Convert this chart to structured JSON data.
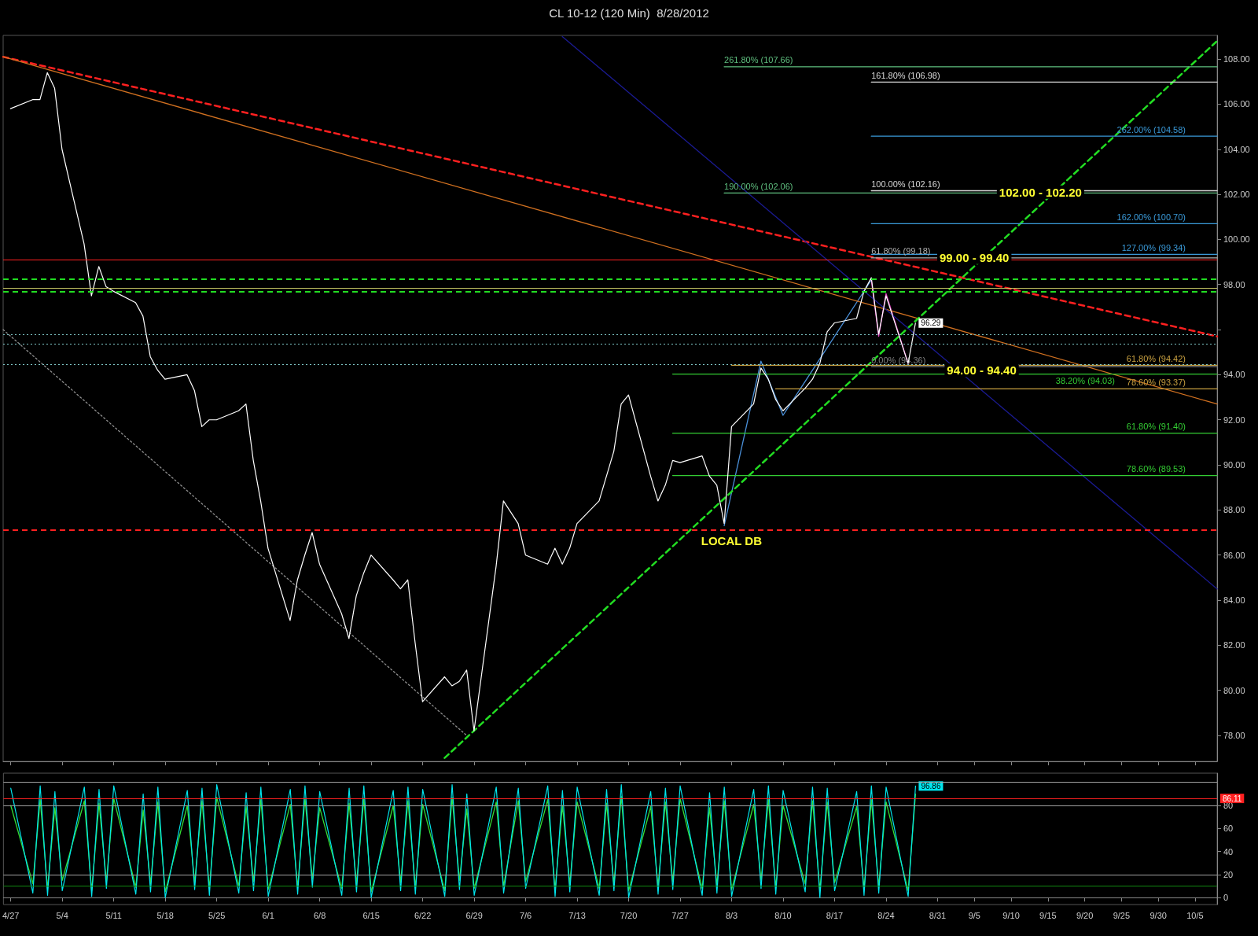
{
  "chart_data": [
    {
      "type": "line",
      "title": "CL 10-12 (120 Min)  8/28/2012",
      "x": [
        "--04-27",
        "--04-30",
        "--05-01",
        "--05-02",
        "--05-03",
        "--05-04",
        "--05-07",
        "--05-08",
        "--05-09",
        "--05-10",
        "--05-11",
        "--05-14",
        "--05-15",
        "--05-16",
        "--05-17",
        "--05-18",
        "--05-21",
        "--05-22",
        "--05-23",
        "--05-24",
        "--05-25",
        "--05-28",
        "--05-29",
        "--05-30",
        "--05-31",
        "--06-01",
        "--06-04",
        "--06-05",
        "--06-06",
        "--06-07",
        "--06-08",
        "--06-11",
        "--06-12",
        "--06-13",
        "--06-14",
        "--06-15",
        "--06-18",
        "--06-19",
        "--06-20",
        "--06-21",
        "--06-22",
        "--06-25",
        "--06-26",
        "--06-27",
        "--06-28",
        "--06-29",
        "--07-02",
        "--07-03",
        "--07-05",
        "--07-06",
        "--07-09",
        "--07-10",
        "--07-11",
        "--07-12",
        "--07-13",
        "--07-16",
        "--07-17",
        "--07-18",
        "--07-19",
        "--07-20",
        "--07-23",
        "--07-24",
        "--07-25",
        "--07-26",
        "--07-27",
        "--07-30",
        "--07-31",
        "--08-01",
        "--08-02",
        "--08-03",
        "--08-06",
        "--08-07",
        "--08-08",
        "--08-09",
        "--08-10",
        "--08-13",
        "--08-14",
        "--08-15",
        "--08-16",
        "--08-17",
        "--08-20",
        "--08-21",
        "--08-22",
        "--08-23",
        "--08-24",
        "--08-27",
        "--08-28"
      ],
      "series": [
        {
          "color": "#ffffff",
          "value_labels": [
            null,
            null,
            null,
            null,
            null,
            null,
            null,
            null,
            null,
            null,
            null,
            null,
            null,
            null,
            null,
            null,
            null,
            null,
            null,
            null,
            null,
            null,
            null,
            null,
            null,
            null,
            null,
            null,
            null,
            null,
            null,
            null,
            null,
            null,
            null,
            null,
            null,
            null,
            null,
            null,
            null,
            null,
            null,
            null,
            null,
            null,
            null,
            null,
            null,
            null,
            null,
            null,
            null,
            null,
            null,
            null,
            null,
            null,
            null,
            null,
            null,
            null,
            null,
            null,
            null,
            null,
            null,
            null,
            null,
            null,
            null,
            null,
            null,
            null,
            null,
            null,
            null,
            null,
            null,
            null,
            null,
            null,
            null,
            null,
            null,
            null,
            "96.29"
          ],
          "values": [
            105.8,
            106.2,
            106.2,
            107.4,
            106.7,
            104.0,
            99.8,
            97.5,
            98.8,
            97.9,
            97.7,
            97.2,
            96.6,
            94.8,
            94.2,
            93.8,
            94.0,
            93.3,
            91.7,
            92.0,
            92.0,
            92.4,
            92.7,
            90.2,
            88.4,
            86.3,
            83.1,
            84.9,
            86.0,
            87.0,
            85.6,
            83.4,
            82.3,
            84.2,
            85.2,
            86.0,
            84.9,
            84.5,
            84.9,
            82.1,
            79.5,
            80.6,
            80.2,
            80.4,
            80.9,
            78.2,
            85.5,
            88.4,
            87.4,
            86.0,
            85.6,
            86.3,
            85.6,
            86.3,
            87.4,
            88.4,
            89.5,
            90.6,
            92.7,
            93.1,
            89.5,
            88.4,
            89.1,
            90.2,
            90.1,
            90.4,
            89.5,
            89.1,
            87.4,
            91.7,
            92.7,
            94.3,
            93.8,
            92.9,
            92.4,
            93.4,
            93.8,
            94.5,
            95.9,
            96.3,
            96.5,
            97.7,
            98.3,
            95.8,
            97.5,
            94.5,
            96.29
          ]
        },
        {
          "color": "#4a90d9",
          "x": [
            "--08-02",
            "--08-07",
            "--08-10",
            "--08-22"
          ],
          "values": [
            87.3,
            94.6,
            92.2,
            98.2
          ]
        },
        {
          "color": "#e040c0",
          "x": [
            "--08-22",
            "--08-23",
            "--08-24",
            "--08-27"
          ],
          "values": [
            98.2,
            95.7,
            97.6,
            94.5
          ]
        },
        {
          "color": "#ff2020",
          "line_style": "dashed",
          "x": [
            "--04-26",
            "--10-08"
          ],
          "values": [
            108.1,
            95.7
          ]
        },
        {
          "color": "#d07020",
          "x": [
            "--04-26",
            "--10-08"
          ],
          "values": [
            108.1,
            92.7
          ]
        },
        {
          "color": "#22dd22",
          "line_style": "dashed",
          "x": [
            "--06-25",
            "--10-08"
          ],
          "values": [
            77.0,
            108.8
          ]
        },
        {
          "color": "#1a1a90",
          "x": [
            "--07-11",
            "--10-08"
          ],
          "values": [
            109.0,
            84.5
          ]
        },
        {
          "color": "#909090",
          "line_style": "dotted",
          "x": [
            "--04-26",
            "--06-28"
          ],
          "values": [
            96.0,
            78.0
          ]
        },
        {
          "name": "261.80% (107.66)",
          "color": "#5fbf7f",
          "x": [
            "--08-02",
            "--10-08"
          ],
          "values": [
            107.66,
            107.66
          ]
        },
        {
          "name": "190.00% (102.06)",
          "color": "#5fbf7f",
          "x": [
            "--08-02",
            "--10-08"
          ],
          "values": [
            102.06,
            102.06
          ]
        },
        {
          "name": "161.80% (106.98)",
          "color": "#d8d8d8",
          "x": [
            "--08-22",
            "--10-08"
          ],
          "values": [
            106.98,
            106.98
          ]
        },
        {
          "name": "100.00% (102.16)",
          "color": "#d8d8d8",
          "x": [
            "--08-22",
            "--10-08"
          ],
          "values": [
            102.16,
            102.16
          ]
        },
        {
          "name": "61.80% (99.18)",
          "color": "#b0b0b0",
          "x": [
            "--08-22",
            "--10-08"
          ],
          "values": [
            99.18,
            99.18
          ]
        },
        {
          "name": "0.00% (94.36)",
          "color": "#808080",
          "x": [
            "--08-22",
            "--10-08"
          ],
          "values": [
            94.36,
            94.36
          ]
        },
        {
          "name": "262.00% (104.58)",
          "color": "#3a9ad9",
          "x": [
            "--08-22",
            "--10-08"
          ],
          "values": [
            104.58,
            104.58
          ]
        },
        {
          "name": "162.00% (100.70)",
          "color": "#3a9ad9",
          "x": [
            "--08-22",
            "--10-08"
          ],
          "values": [
            100.7,
            100.7
          ]
        },
        {
          "name": "127.00% (99.34)",
          "color": "#3a9ad9",
          "x": [
            "--08-22",
            "--10-08"
          ],
          "values": [
            99.34,
            99.34
          ]
        },
        {
          "name": "61.80% (94.42)",
          "color": "#c8a040",
          "x": [
            "--08-03",
            "--10-08"
          ],
          "values": [
            94.42,
            94.42
          ]
        },
        {
          "name": "38.20% (94.03)",
          "color": "#33cc33",
          "x": [
            "--07-26",
            "--10-08"
          ],
          "values": [
            94.03,
            94.03
          ]
        },
        {
          "name": "78.60% (93.37)",
          "color": "#c8a040",
          "x": [
            "--08-09",
            "--10-08"
          ],
          "values": [
            93.37,
            93.37
          ]
        },
        {
          "name": "61.80% (91.40)",
          "color": "#33cc33",
          "x": [
            "--07-26",
            "--10-08"
          ],
          "values": [
            91.4,
            91.4
          ]
        },
        {
          "name": "78.60% (89.53)",
          "color": "#33cc33",
          "x": [
            "--07-26",
            "--10-08"
          ],
          "values": [
            89.53,
            89.53
          ]
        }
      ],
      "ref_lines": [
        {
          "axis": "y",
          "value": 99.1,
          "color": "#ff2020",
          "line_style": "solid"
        },
        {
          "axis": "y",
          "value": 98.25,
          "color": "#22dd22",
          "line_style": "dashed"
        },
        {
          "axis": "y",
          "value": 97.85,
          "color": "#c8c864",
          "line_style": "solid"
        },
        {
          "axis": "y",
          "value": 97.7,
          "color": "#22dd22",
          "line_style": "dashed"
        },
        {
          "axis": "y",
          "value": 95.8,
          "color": "#7fc8c8",
          "line_style": "dotted"
        },
        {
          "axis": "y",
          "value": 95.35,
          "color": "#7fc8c8",
          "line_style": "dotted"
        },
        {
          "axis": "y",
          "value": 94.45,
          "color": "#7fc8c8",
          "line_style": "dotted"
        },
        {
          "axis": "y",
          "value": 87.1,
          "color": "#ff2020",
          "line_style": "dashed",
          "label": "LOCAL DB"
        }
      ],
      "annotations": [
        {
          "text": "102.00 - 102.20",
          "x": "--09-14",
          "y": 102.1
        },
        {
          "text": "99.00 - 99.40",
          "x": "--09-05",
          "y": 99.2
        },
        {
          "text": "94.00 - 94.40",
          "x": "--09-06",
          "y": 94.2
        }
      ],
      "xlim": [
        "--04-26",
        "--10-08"
      ],
      "xticks": [
        {
          "value": "--04-27",
          "label": "4/27"
        },
        {
          "value": "--05-04",
          "label": "5/4"
        },
        {
          "value": "--05-11",
          "label": "5/11"
        },
        {
          "value": "--05-18",
          "label": "5/18"
        },
        {
          "value": "--05-25",
          "label": "5/25"
        },
        {
          "value": "--06-01",
          "label": "6/1"
        },
        {
          "value": "--06-08",
          "label": "6/8"
        },
        {
          "value": "--06-15",
          "label": "6/15"
        },
        {
          "value": "--06-22",
          "label": "6/22"
        },
        {
          "value": "--06-29",
          "label": "6/29"
        },
        {
          "value": "--07-06",
          "label": "7/6"
        },
        {
          "value": "--07-13",
          "label": "7/13"
        },
        {
          "value": "--07-20",
          "label": "7/20"
        },
        {
          "value": "--07-27",
          "label": "7/27"
        },
        {
          "value": "--08-03",
          "label": "8/3"
        },
        {
          "value": "--08-10",
          "label": "8/10"
        },
        {
          "value": "--08-17",
          "label": "8/17"
        },
        {
          "value": "--08-24",
          "label": "8/24"
        },
        {
          "value": "--08-31",
          "label": "8/31"
        },
        {
          "value": "--09-05",
          "label": "9/5"
        },
        {
          "value": "--09-10",
          "label": "9/10"
        },
        {
          "value": "--09-15",
          "label": "9/15"
        },
        {
          "value": "--09-20",
          "label": "9/20"
        },
        {
          "value": "--09-25",
          "label": "9/25"
        },
        {
          "value": "--09-30",
          "label": "9/30"
        },
        {
          "value": "--10-05",
          "label": "10/5"
        }
      ],
      "ylim": [
        76.85,
        109.05
      ],
      "yticks": [
        {
          "value": 78,
          "label": "78.00"
        },
        {
          "value": 80,
          "label": "80.00"
        },
        {
          "value": 82,
          "label": "82.00"
        },
        {
          "value": 84,
          "label": "84.00"
        },
        {
          "value": 86,
          "label": "86.00"
        },
        {
          "value": 88,
          "label": "88.00"
        },
        {
          "value": 90,
          "label": "90.00"
        },
        {
          "value": 92,
          "label": "92.00"
        },
        {
          "value": 94,
          "label": "94.00"
        },
        {
          "value": 96,
          "label": null
        },
        {
          "value": 98,
          "label": "98.00"
        },
        {
          "value": 100,
          "label": "100.00"
        },
        {
          "value": 102,
          "label": "102.00"
        },
        {
          "value": 104,
          "label": "104.00"
        },
        {
          "value": 106,
          "label": "106.00"
        },
        {
          "value": 108,
          "label": "108.00"
        }
      ],
      "tick_labels": "y",
      "grid": false,
      "marker": "none"
    },
    {
      "type": "line",
      "x": [
        "--04-27",
        "--04-30",
        "--05-01",
        "--05-02",
        "--05-03",
        "--05-04",
        "--05-07",
        "--05-08",
        "--05-09",
        "--05-10",
        "--05-11",
        "--05-14",
        "--05-15",
        "--05-16",
        "--05-17",
        "--05-18",
        "--05-21",
        "--05-22",
        "--05-23",
        "--05-24",
        "--05-25",
        "--05-28",
        "--05-29",
        "--05-30",
        "--05-31",
        "--06-01",
        "--06-04",
        "--06-05",
        "--06-06",
        "--06-07",
        "--06-08",
        "--06-11",
        "--06-12",
        "--06-13",
        "--06-14",
        "--06-15",
        "--06-18",
        "--06-19",
        "--06-20",
        "--06-21",
        "--06-22",
        "--06-25",
        "--06-26",
        "--06-27",
        "--06-28",
        "--06-29",
        "--07-02",
        "--07-03",
        "--07-05",
        "--07-06",
        "--07-09",
        "--07-10",
        "--07-11",
        "--07-12",
        "--07-13",
        "--07-16",
        "--07-17",
        "--07-18",
        "--07-19",
        "--07-20",
        "--07-23",
        "--07-24",
        "--07-25",
        "--07-26",
        "--07-27",
        "--07-30",
        "--07-31",
        "--08-01",
        "--08-02",
        "--08-03",
        "--08-06",
        "--08-07",
        "--08-08",
        "--08-09",
        "--08-10",
        "--08-13",
        "--08-14",
        "--08-15",
        "--08-16",
        "--08-17",
        "--08-20",
        "--08-21",
        "--08-22",
        "--08-23",
        "--08-24",
        "--08-27",
        "--08-28"
      ],
      "series": [
        {
          "color": "#00e5ee",
          "value_labels": [
            null,
            null,
            null,
            null,
            null,
            null,
            null,
            null,
            null,
            null,
            null,
            null,
            null,
            null,
            null,
            null,
            null,
            null,
            null,
            null,
            null,
            null,
            null,
            null,
            null,
            null,
            null,
            null,
            null,
            null,
            null,
            null,
            null,
            null,
            null,
            null,
            null,
            null,
            null,
            null,
            null,
            null,
            null,
            null,
            null,
            null,
            null,
            null,
            null,
            null,
            null,
            null,
            null,
            null,
            null,
            null,
            null,
            null,
            null,
            null,
            null,
            null,
            null,
            null,
            null,
            null,
            null,
            null,
            null,
            null,
            null,
            null,
            null,
            null,
            null,
            null,
            null,
            null,
            null,
            null,
            null,
            null,
            null,
            null,
            null,
            null,
            "96.86"
          ],
          "values": [
            95,
            4,
            97,
            2,
            92,
            6,
            96,
            1,
            94,
            8,
            97,
            3,
            90,
            5,
            96,
            0,
            93,
            7,
            95,
            2,
            98,
            4,
            91,
            6,
            96,
            1,
            94,
            3,
            97,
            9,
            92,
            2,
            95,
            5,
            97,
            0,
            93,
            6,
            96,
            3,
            94,
            1,
            98,
            7,
            90,
            2,
            96,
            4,
            95,
            8,
            97,
            1,
            93,
            5,
            96,
            2,
            94,
            6,
            98,
            0,
            92,
            3,
            95,
            7,
            97,
            2,
            91,
            4,
            96,
            1,
            94,
            8,
            97,
            3,
            93,
            5,
            96,
            0,
            95,
            6,
            92,
            2,
            97,
            4,
            96,
            1,
            96.86
          ]
        },
        {
          "color": "#33dd33",
          "values": [
            80,
            12,
            85,
            8,
            78,
            15,
            84,
            6,
            82,
            14,
            86,
            9,
            76,
            12,
            83,
            5,
            80,
            13,
            84,
            8,
            87,
            10,
            79,
            14,
            85,
            7,
            81,
            9,
            86,
            16,
            78,
            8,
            82,
            12,
            86,
            5,
            80,
            13,
            84,
            9,
            81,
            6,
            87,
            15,
            77,
            8,
            83,
            10,
            84,
            14,
            85,
            7,
            80,
            12,
            83,
            8,
            82,
            12,
            88,
            6,
            79,
            10,
            83,
            14,
            86,
            8,
            78,
            11,
            84,
            7,
            81,
            15,
            85,
            9,
            80,
            12,
            84,
            6,
            83,
            13,
            79,
            8,
            85,
            10,
            83,
            6,
            90
          ]
        }
      ],
      "ref_lines": [
        {
          "axis": "y",
          "value": 100,
          "color": "#a0a0a0",
          "line_style": "solid"
        },
        {
          "axis": "y",
          "value": 86.11,
          "color": "#ff2020",
          "line_style": "solid",
          "label": "86.11"
        },
        {
          "axis": "y",
          "value": 80,
          "color": "#a0a0a0",
          "line_style": "solid"
        },
        {
          "axis": "y",
          "value": 20,
          "color": "#a0a0a0",
          "line_style": "solid"
        },
        {
          "axis": "y",
          "value": 10,
          "color": "#118811",
          "line_style": "solid"
        }
      ],
      "xlim": [
        "--04-26",
        "--10-08"
      ],
      "xticks": [
        {
          "value": "--04-27",
          "label": "4/27"
        },
        {
          "value": "--05-04",
          "label": "5/4"
        },
        {
          "value": "--05-11",
          "label": "5/11"
        },
        {
          "value": "--05-18",
          "label": "5/18"
        },
        {
          "value": "--05-25",
          "label": "5/25"
        },
        {
          "value": "--06-01",
          "label": "6/1"
        },
        {
          "value": "--06-08",
          "label": "6/8"
        },
        {
          "value": "--06-15",
          "label": "6/15"
        },
        {
          "value": "--06-22",
          "label": "6/22"
        },
        {
          "value": "--06-29",
          "label": "6/29"
        },
        {
          "value": "--07-06",
          "label": "7/6"
        },
        {
          "value": "--07-13",
          "label": "7/13"
        },
        {
          "value": "--07-20",
          "label": "7/20"
        },
        {
          "value": "--07-27",
          "label": "7/27"
        },
        {
          "value": "--08-03",
          "label": "8/3"
        },
        {
          "value": "--08-10",
          "label": "8/10"
        },
        {
          "value": "--08-17",
          "label": "8/17"
        },
        {
          "value": "--08-24",
          "label": "8/24"
        },
        {
          "value": "--08-31",
          "label": "8/31"
        },
        {
          "value": "--09-05",
          "label": "9/5"
        },
        {
          "value": "--09-10",
          "label": "9/10"
        },
        {
          "value": "--09-15",
          "label": "9/15"
        },
        {
          "value": "--09-20",
          "label": "9/20"
        },
        {
          "value": "--09-25",
          "label": "9/25"
        },
        {
          "value": "--09-30",
          "label": "9/30"
        },
        {
          "value": "--10-05",
          "label": "10/5"
        }
      ],
      "ylim": [
        -6,
        108
      ],
      "yticks": [
        0,
        20,
        40,
        60,
        80
      ],
      "grid": false,
      "marker": "none"
    }
  ]
}
